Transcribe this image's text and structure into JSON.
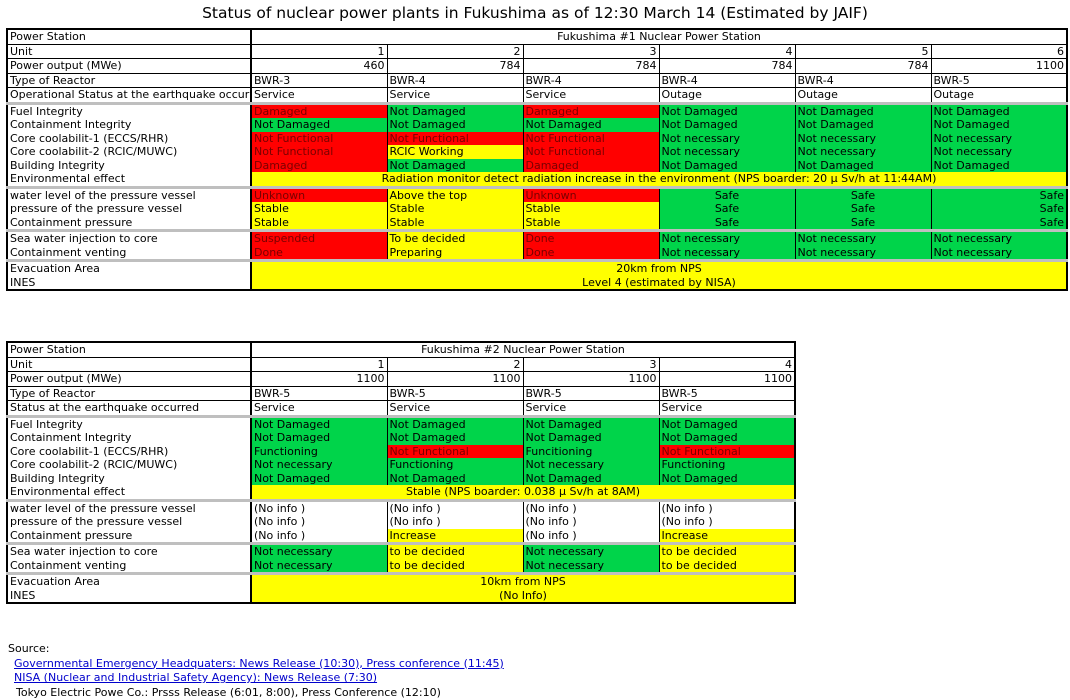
{
  "title": "Status of nuclear power plants in Fukushima as of 12:30 March 14 (Estimated by JAIF)",
  "plant1": {
    "header": {
      "station_label": "Power Station",
      "station_name": "Fukushima #1 Nuclear Power Station",
      "unit_label": "Unit",
      "units": [
        "1",
        "2",
        "3",
        "4",
        "5",
        "6"
      ],
      "output_label": "Power output (MWe)",
      "outputs": [
        "460",
        "784",
        "784",
        "784",
        "784",
        "1100"
      ],
      "type_label": "Type of Reactor",
      "types": [
        "BWR-3",
        "BWR-4",
        "BWR-4",
        "BWR-4",
        "BWR-4",
        "BWR-5"
      ],
      "opstatus_label": "Operational Status at the earthquake occurred",
      "opstatus": [
        "Service",
        "Service",
        "Service",
        "Outage",
        "Outage",
        "Outage"
      ]
    },
    "rows": [
      {
        "label": "Fuel Integrity",
        "sep": true,
        "cells": [
          [
            "Damaged",
            "red"
          ],
          [
            "Not Damaged",
            "green"
          ],
          [
            "Damaged",
            "red"
          ],
          [
            "Not Damaged",
            "green"
          ],
          [
            "Not Damaged",
            "green"
          ],
          [
            "Not Damaged",
            "green"
          ]
        ]
      },
      {
        "label": "Containment Integrity",
        "cells": [
          [
            "Not Damaged",
            "green"
          ],
          [
            "Not Damaged",
            "green"
          ],
          [
            "Not Damaged",
            "green"
          ],
          [
            "Not Damaged",
            "green"
          ],
          [
            "Not Damaged",
            "green"
          ],
          [
            "Not Damaged",
            "green"
          ]
        ]
      },
      {
        "label": "Core coolabilit-1 (ECCS/RHR)",
        "cells": [
          [
            "Not Functional",
            "red"
          ],
          [
            "Not Functional",
            "red"
          ],
          [
            "Not Functional",
            "red"
          ],
          [
            "Not necessary",
            "green"
          ],
          [
            "Not necessary",
            "green"
          ],
          [
            "Not necessary",
            "green"
          ]
        ]
      },
      {
        "label": "Core coolabilit-2 (RCIC/MUWC)",
        "cells": [
          [
            "Not Functional",
            "red"
          ],
          [
            "RCIC Working",
            "yellow"
          ],
          [
            "Not Functional",
            "red"
          ],
          [
            "Not necessary",
            "green"
          ],
          [
            "Not necessary",
            "green"
          ],
          [
            "Not necessary",
            "green"
          ]
        ]
      },
      {
        "label": "Building Integrity",
        "cells": [
          [
            "Damaged",
            "red"
          ],
          [
            "Not Damaged",
            "green"
          ],
          [
            "Damaged",
            "red"
          ],
          [
            "Not Damaged",
            "green"
          ],
          [
            "Not Damaged",
            "green"
          ],
          [
            "Not Damaged",
            "green"
          ]
        ]
      },
      {
        "label": "Environmental effect",
        "span": [
          "Radiation monitor detect radiation increase in the environment (NPS boarder: 20 μ Sv/h at 11:44AM)",
          "yellow"
        ]
      },
      {
        "label": "water level of the pressure vessel",
        "sep": true,
        "cells": [
          [
            "Unknown",
            "red"
          ],
          [
            "Above the top",
            "yellow"
          ],
          [
            "Unknown",
            "red"
          ],
          [
            "Safe",
            "green",
            "c"
          ],
          [
            "Safe",
            "green",
            "c"
          ],
          [
            "Safe",
            "green",
            "r"
          ]
        ]
      },
      {
        "label": "pressure of the pressure vessel",
        "cells": [
          [
            "Stable",
            "yellow"
          ],
          [
            "Stable",
            "yellow"
          ],
          [
            "Stable",
            "yellow"
          ],
          [
            "Safe",
            "green",
            "c"
          ],
          [
            "Safe",
            "green",
            "c"
          ],
          [
            "Safe",
            "green",
            "r"
          ]
        ]
      },
      {
        "label": "Containment pressure",
        "cells": [
          [
            "Stable",
            "yellow"
          ],
          [
            "Stable",
            "yellow"
          ],
          [
            "Stable",
            "yellow"
          ],
          [
            "Safe",
            "green",
            "c"
          ],
          [
            "Safe",
            "green",
            "c"
          ],
          [
            "Safe",
            "green",
            "r"
          ]
        ]
      },
      {
        "label": "Sea water injection to core",
        "sep": true,
        "cells": [
          [
            "Suspended",
            "red"
          ],
          [
            "To be decided",
            "yellow"
          ],
          [
            "Done",
            "red"
          ],
          [
            "Not necessary",
            "green"
          ],
          [
            "Not necessary",
            "green"
          ],
          [
            "Not necessary",
            "green"
          ]
        ]
      },
      {
        "label": "Containment venting",
        "cells": [
          [
            "Done",
            "red"
          ],
          [
            "Preparing",
            "yellow"
          ],
          [
            "Done",
            "red"
          ],
          [
            "Not necessary",
            "green"
          ],
          [
            "Not necessary",
            "green"
          ],
          [
            "Not necessary",
            "green"
          ]
        ]
      },
      {
        "label": "Evacuation Area",
        "sep": true,
        "span": [
          "20km from NPS",
          "yellow"
        ]
      },
      {
        "label": "INES",
        "span": [
          "Level 4 (estimated by NISA)",
          "yellow"
        ]
      }
    ]
  },
  "plant2": {
    "header": {
      "station_label": "Power Station",
      "station_name": "Fukushima #2 Nuclear Power Station",
      "unit_label": "Unit",
      "units": [
        "1",
        "2",
        "3",
        "4"
      ],
      "output_label": "Power output (MWe)",
      "outputs": [
        "1100",
        "1100",
        "1100",
        "1100"
      ],
      "type_label": "Type of Reactor",
      "types": [
        "BWR-5",
        "BWR-5",
        "BWR-5",
        "BWR-5"
      ],
      "opstatus_label": "Status at the earthquake occurred",
      "opstatus": [
        "Service",
        "Service",
        "Service",
        "Service"
      ]
    },
    "rows": [
      {
        "label": "Fuel Integrity",
        "sep": true,
        "cells": [
          [
            "Not Damaged",
            "green"
          ],
          [
            "Not Damaged",
            "green"
          ],
          [
            "Not Damaged",
            "green"
          ],
          [
            "Not Damaged",
            "green"
          ]
        ]
      },
      {
        "label": "Containment Integrity",
        "cells": [
          [
            "Not Damaged",
            "green"
          ],
          [
            "Not Damaged",
            "green"
          ],
          [
            "Not Damaged",
            "green"
          ],
          [
            "Not Damaged",
            "green"
          ]
        ]
      },
      {
        "label": "Core coolabilit-1 (ECCS/RHR)",
        "cells": [
          [
            "Functioning",
            "green"
          ],
          [
            "Not Functional",
            "red"
          ],
          [
            "Funcitioning",
            "green"
          ],
          [
            "Not Functional",
            "red"
          ]
        ]
      },
      {
        "label": "Core coolabilit-2 (RCIC/MUWC)",
        "cells": [
          [
            "Not necessary",
            "green"
          ],
          [
            "Functioning",
            "green"
          ],
          [
            "Not necessary",
            "green"
          ],
          [
            "Functioning",
            "green"
          ]
        ]
      },
      {
        "label": "Building Integrity",
        "cells": [
          [
            "Not Damaged",
            "green"
          ],
          [
            "Not Damaged",
            "green"
          ],
          [
            "Not Damaged",
            "green"
          ],
          [
            "Not Damaged",
            "green"
          ]
        ]
      },
      {
        "label": "Environmental effect",
        "span": [
          "Stable (NPS boarder: 0.038 μ Sv/h at 8AM)",
          "yellow"
        ]
      },
      {
        "label": "water level of the pressure vessel",
        "sep": true,
        "cells": [
          [
            "(No info )",
            ""
          ],
          [
            "(No info )",
            ""
          ],
          [
            "(No info )",
            ""
          ],
          [
            "(No info )",
            ""
          ]
        ]
      },
      {
        "label": "pressure of the pressure vessel",
        "cells": [
          [
            "(No info )",
            ""
          ],
          [
            "(No info )",
            ""
          ],
          [
            "(No info )",
            ""
          ],
          [
            "(No info )",
            ""
          ]
        ]
      },
      {
        "label": "Containment pressure",
        "cells": [
          [
            "(No info )",
            ""
          ],
          [
            "Increase",
            "yellow"
          ],
          [
            "(No info )",
            ""
          ],
          [
            "Increase",
            "yellow"
          ]
        ]
      },
      {
        "label": "Sea water injection to core",
        "sep": true,
        "cells": [
          [
            "Not necessary",
            "green"
          ],
          [
            "to be decided",
            "yellow"
          ],
          [
            "Not necessary",
            "green"
          ],
          [
            "to be decided",
            "yellow"
          ]
        ]
      },
      {
        "label": "Containment venting",
        "cells": [
          [
            "Not necessary",
            "green"
          ],
          [
            "to be decided",
            "yellow"
          ],
          [
            "Not necessary",
            "green"
          ],
          [
            "to be decided",
            "yellow"
          ]
        ]
      },
      {
        "label": "Evacuation Area",
        "sep": true,
        "span": [
          "10km from NPS",
          "yellow"
        ]
      },
      {
        "label": "INES",
        "span": [
          "(No Info)",
          "yellow"
        ]
      }
    ]
  },
  "source": {
    "label": "Source:",
    "links": [
      "Governmental Emergency Headquaters: News Release (10:30), Press conference (11:45)",
      "NISA (Nuclear and Industrial Safety Agency): News Release (7:30)"
    ],
    "note": "Tokyo Electric Powe Co.: Prsss Release (6:01, 8:00), Press Conference (12:10)"
  }
}
